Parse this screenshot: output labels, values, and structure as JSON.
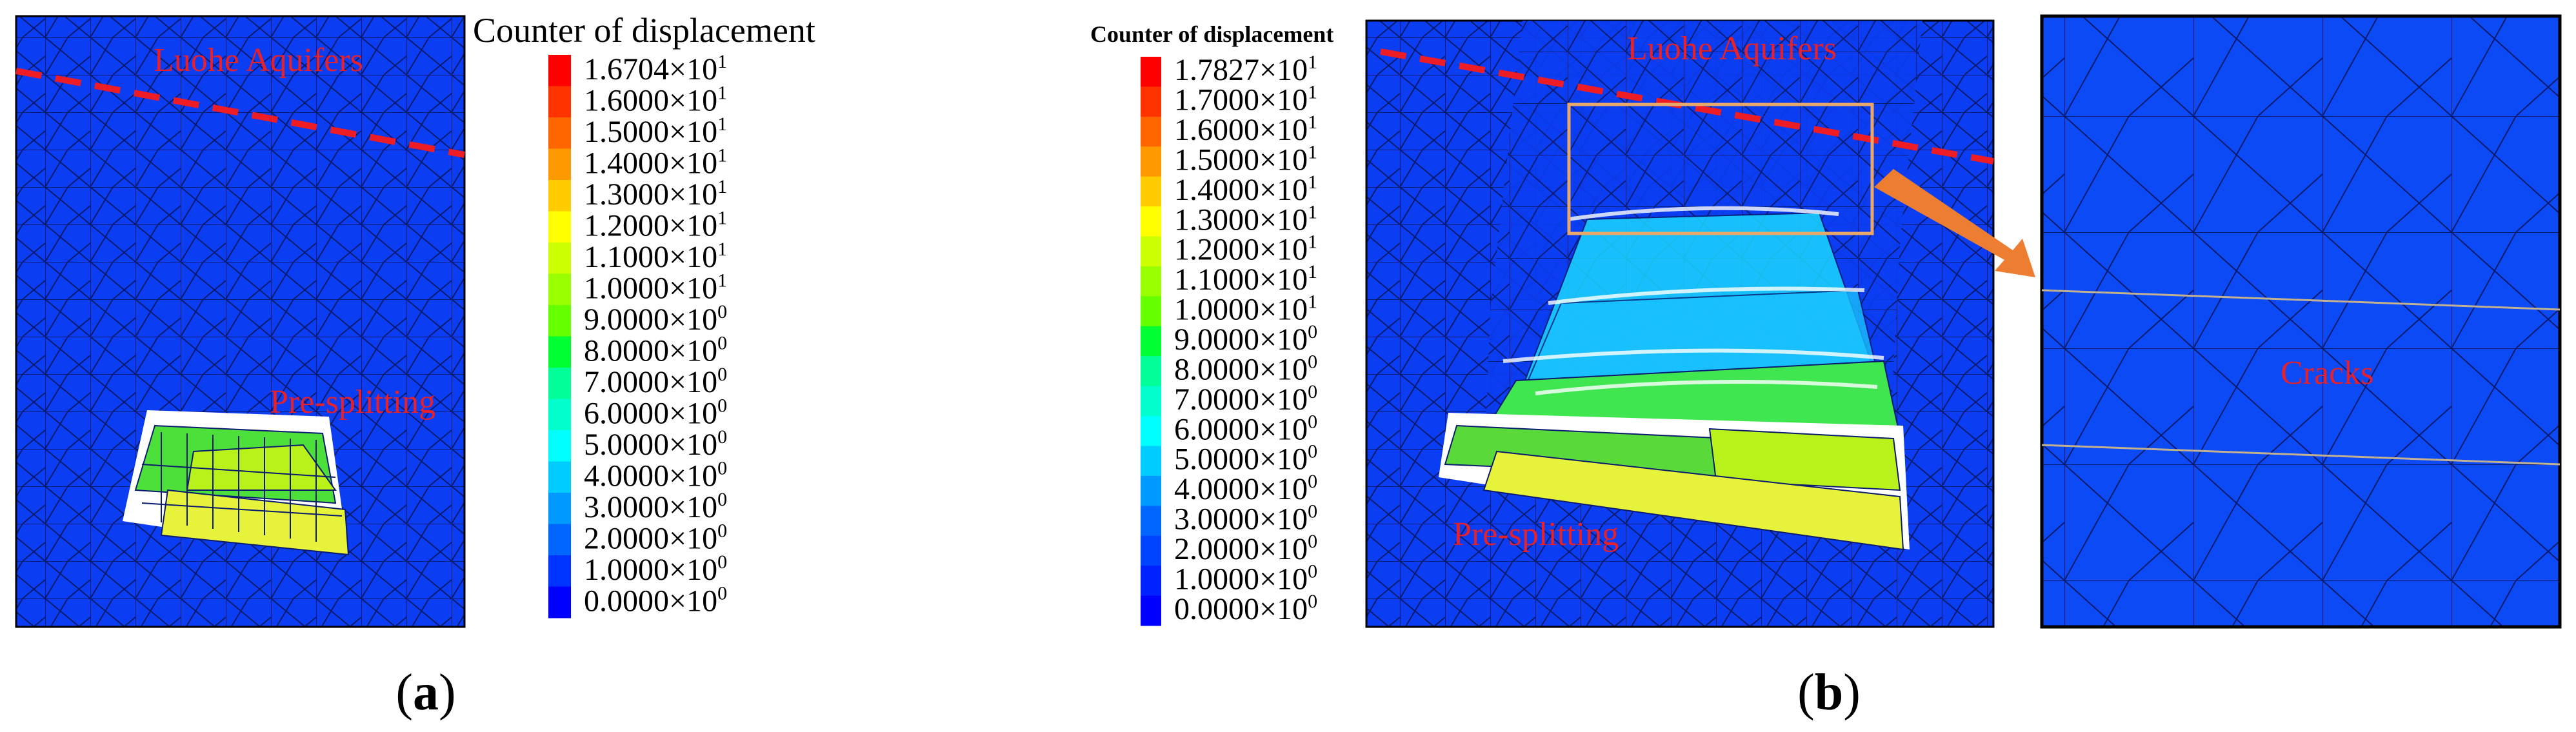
{
  "panel_a": {
    "letter_open": "(",
    "letter": "a",
    "letter_close": ")",
    "label_aquifer": "Luohe Aquifers",
    "label_presplit": "Pre-splitting",
    "legend_title": "Counter of displacement",
    "legend": [
      {
        "mantissa": "1.6704",
        "exp": "1",
        "color": "#ff0000"
      },
      {
        "mantissa": "1.6000",
        "exp": "1",
        "color": "#ff3300"
      },
      {
        "mantissa": "1.5000",
        "exp": "1",
        "color": "#ff6600"
      },
      {
        "mantissa": "1.4000",
        "exp": "1",
        "color": "#ff9900"
      },
      {
        "mantissa": "1.3000",
        "exp": "1",
        "color": "#ffcc00"
      },
      {
        "mantissa": "1.2000",
        "exp": "1",
        "color": "#ffff00"
      },
      {
        "mantissa": "1.1000",
        "exp": "1",
        "color": "#ccff00"
      },
      {
        "mantissa": "1.0000",
        "exp": "1",
        "color": "#99ff00"
      },
      {
        "mantissa": "9.0000",
        "exp": "0",
        "color": "#66ff00"
      },
      {
        "mantissa": "8.0000",
        "exp": "0",
        "color": "#00ff33"
      },
      {
        "mantissa": "7.0000",
        "exp": "0",
        "color": "#00ff99"
      },
      {
        "mantissa": "6.0000",
        "exp": "0",
        "color": "#00ffcc"
      },
      {
        "mantissa": "5.0000",
        "exp": "0",
        "color": "#00ffff"
      },
      {
        "mantissa": "4.0000",
        "exp": "0",
        "color": "#00ccff"
      },
      {
        "mantissa": "3.0000",
        "exp": "0",
        "color": "#0099ff"
      },
      {
        "mantissa": "2.0000",
        "exp": "0",
        "color": "#0066ff"
      },
      {
        "mantissa": "1.0000",
        "exp": "0",
        "color": "#0033ff"
      },
      {
        "mantissa": "0.0000",
        "exp": "0",
        "color": "#0000ff"
      }
    ]
  },
  "panel_b": {
    "letter_open": "(",
    "letter": "b",
    "letter_close": ")",
    "label_aquifer": "Luohe Aquifers",
    "label_presplit": "Pre-splitting",
    "label_cracks": "Cracks",
    "legend_title": "Counter of displacement",
    "legend": [
      {
        "mantissa": "1.7827",
        "exp": "1",
        "color": "#ff0000"
      },
      {
        "mantissa": "1.7000",
        "exp": "1",
        "color": "#ff3300"
      },
      {
        "mantissa": "1.6000",
        "exp": "1",
        "color": "#ff6600"
      },
      {
        "mantissa": "1.5000",
        "exp": "1",
        "color": "#ff9900"
      },
      {
        "mantissa": "1.4000",
        "exp": "1",
        "color": "#ffcc00"
      },
      {
        "mantissa": "1.3000",
        "exp": "1",
        "color": "#ffff00"
      },
      {
        "mantissa": "1.2000",
        "exp": "1",
        "color": "#ccff00"
      },
      {
        "mantissa": "1.1000",
        "exp": "1",
        "color": "#99ff00"
      },
      {
        "mantissa": "1.0000",
        "exp": "1",
        "color": "#66ff00"
      },
      {
        "mantissa": "9.0000",
        "exp": "0",
        "color": "#00ff33"
      },
      {
        "mantissa": "8.0000",
        "exp": "0",
        "color": "#00ff99"
      },
      {
        "mantissa": "7.0000",
        "exp": "0",
        "color": "#00ffcc"
      },
      {
        "mantissa": "6.0000",
        "exp": "0",
        "color": "#00ffff"
      },
      {
        "mantissa": "5.0000",
        "exp": "0",
        "color": "#00ccff"
      },
      {
        "mantissa": "4.0000",
        "exp": "0",
        "color": "#0099ff"
      },
      {
        "mantissa": "3.0000",
        "exp": "0",
        "color": "#0066ff"
      },
      {
        "mantissa": "2.0000",
        "exp": "0",
        "color": "#0044ff"
      },
      {
        "mantissa": "1.0000",
        "exp": "0",
        "color": "#0022ff"
      },
      {
        "mantissa": "0.0000",
        "exp": "0",
        "color": "#0000ff"
      }
    ]
  },
  "colors": {
    "rock": "#0b3df2",
    "mesh": "#0a1a6e",
    "fault_line": "#ee1c25",
    "highlight_box": "#e8a86a",
    "arrow": "#ed7d31"
  }
}
